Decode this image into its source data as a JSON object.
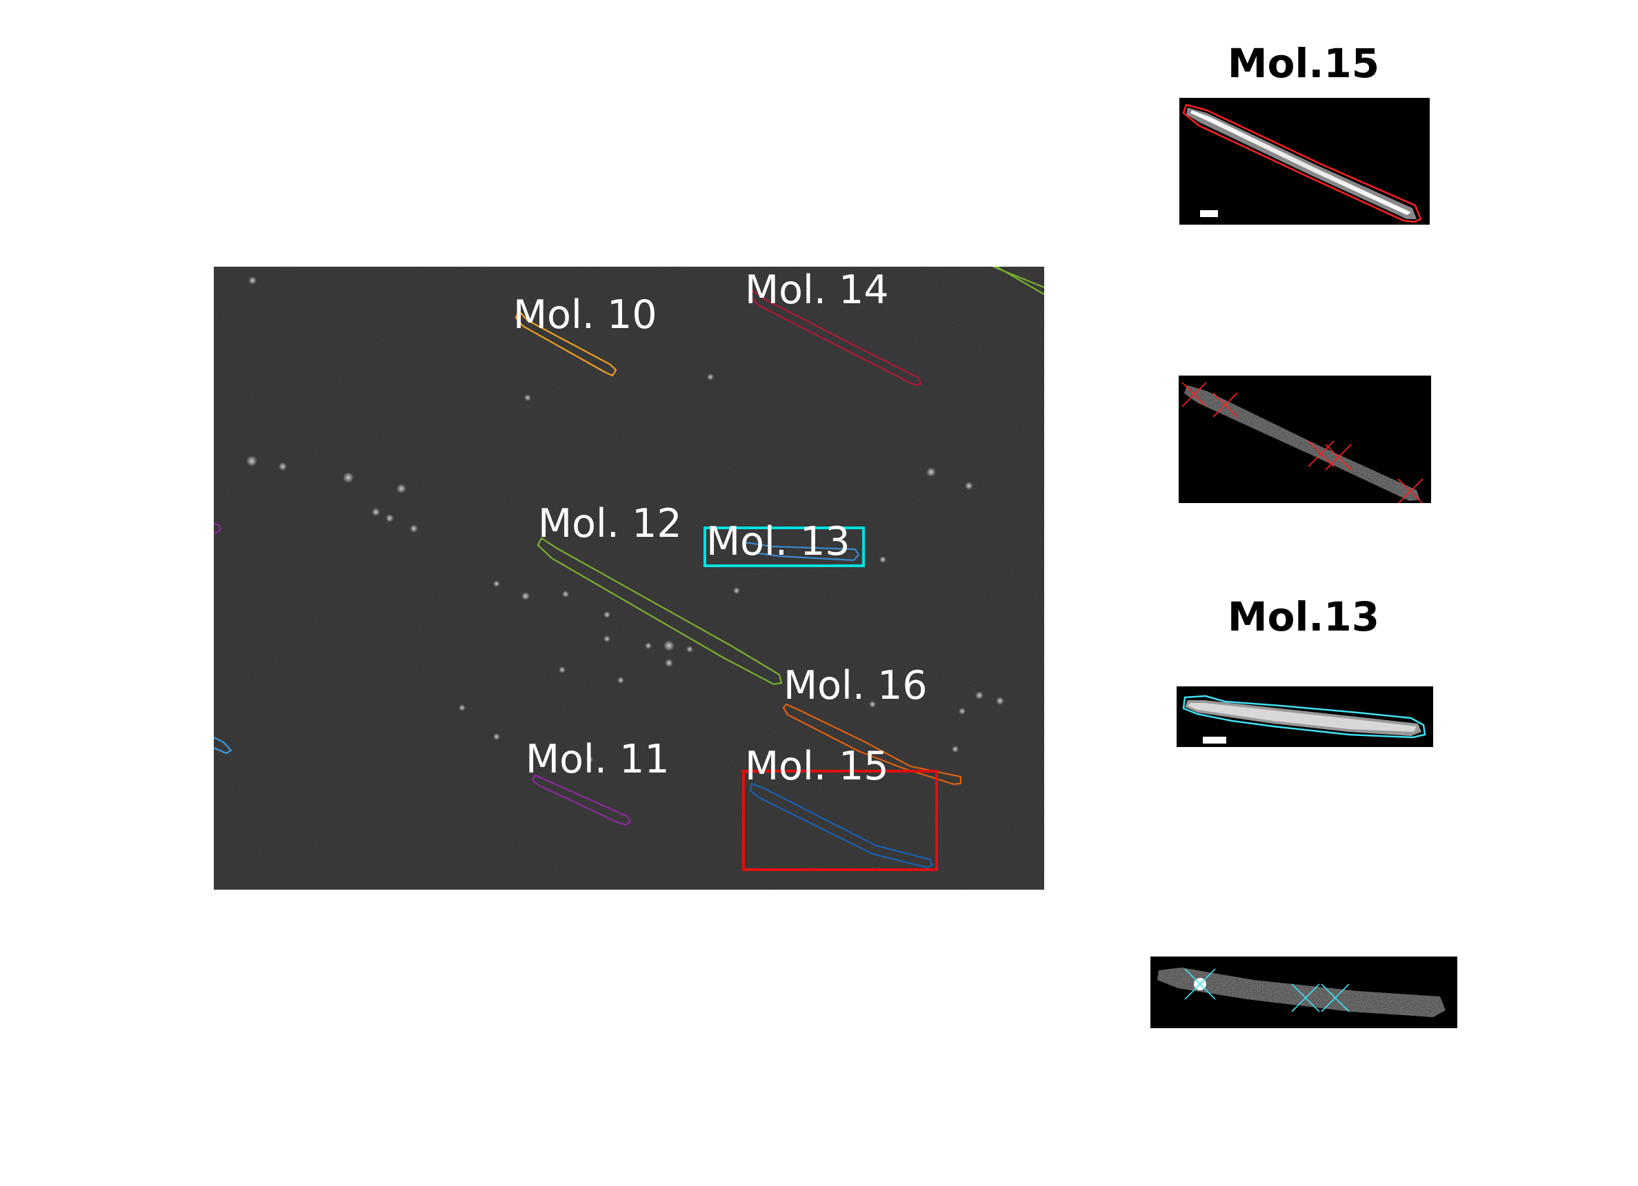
{
  "main_image": {
    "labels": {
      "mol10": "Mol. 10",
      "mol11": "Mol. 11",
      "mol12": "Mol. 12",
      "mol13": "Mol. 13",
      "mol14": "Mol. 14",
      "mol15": "Mol. 15",
      "mol16": "Mol. 16"
    },
    "background_color": "#2a2a2a",
    "outline_colors": {
      "mol10": "#f0a020",
      "mol11": "#8a2a9a",
      "mol12": "#7ab030",
      "mol13": "#3a8ad0",
      "mol14": "#b01838",
      "mol15": "#1a60b0",
      "mol16": "#e06010"
    },
    "highlight_box_colors": {
      "mol13": "#00e0e0",
      "mol15": "#e01010"
    }
  },
  "side_panels": {
    "top_title": "Mol.15",
    "bottom_title": "Mol.13",
    "mol15_color": "#ff2020",
    "mol13_color": "#40e0f0"
  }
}
